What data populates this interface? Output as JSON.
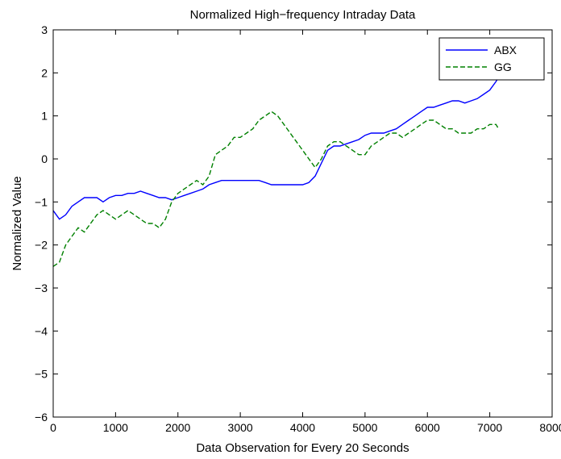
{
  "chart_data": {
    "type": "line",
    "title": "Normalized High−frequency Intraday Data",
    "xlabel": "Data Observation for Every 20 Seconds",
    "ylabel": "Normalized Value",
    "xlim": [
      0,
      8000
    ],
    "ylim": [
      -6,
      3
    ],
    "xticks": [
      "0",
      "1000",
      "2000",
      "3000",
      "4000",
      "5000",
      "6000",
      "7000",
      "8000"
    ],
    "yticks": [
      "3",
      "2",
      "1",
      "0",
      "−1",
      "−2",
      "−3",
      "−4",
      "−5",
      "−6"
    ],
    "grid": false,
    "legend_position": "top-right",
    "series": [
      {
        "name": "ABX",
        "color": "#0000ff",
        "style": "solid",
        "x": [
          0,
          100,
          200,
          300,
          400,
          500,
          600,
          700,
          800,
          900,
          1000,
          1100,
          1200,
          1300,
          1400,
          1500,
          1600,
          1700,
          1800,
          1900,
          2000,
          2100,
          2200,
          2300,
          2400,
          2500,
          2600,
          2700,
          2800,
          2900,
          3000,
          3100,
          3200,
          3300,
          3400,
          3500,
          3600,
          3700,
          3800,
          3900,
          4000,
          4100,
          4200,
          4300,
          4400,
          4500,
          4600,
          4700,
          4800,
          4900,
          5000,
          5100,
          5200,
          5300,
          5400,
          5500,
          5600,
          5700,
          5800,
          5900,
          6000,
          6100,
          6200,
          6300,
          6400,
          6500,
          6600,
          6700,
          6800,
          6900,
          7000,
          7100,
          7140
        ],
        "y": [
          -1.2,
          -1.4,
          -1.3,
          -1.1,
          -1.0,
          -0.9,
          -0.9,
          -0.9,
          -1.0,
          -0.9,
          -0.85,
          -0.85,
          -0.8,
          -0.8,
          -0.75,
          -0.8,
          -0.85,
          -0.9,
          -0.9,
          -0.95,
          -0.9,
          -0.85,
          -0.8,
          -0.75,
          -0.7,
          -0.6,
          -0.55,
          -0.5,
          -0.5,
          -0.5,
          -0.5,
          -0.5,
          -0.5,
          -0.5,
          -0.55,
          -0.6,
          -0.6,
          -0.6,
          -0.6,
          -0.6,
          -0.6,
          -0.55,
          -0.4,
          -0.1,
          0.2,
          0.3,
          0.3,
          0.35,
          0.4,
          0.45,
          0.55,
          0.6,
          0.6,
          0.6,
          0.65,
          0.7,
          0.8,
          0.9,
          1.0,
          1.1,
          1.2,
          1.2,
          1.25,
          1.3,
          1.35,
          1.35,
          1.3,
          1.35,
          1.4,
          1.5,
          1.6,
          1.8,
          1.9
        ]
      },
      {
        "name": "GG",
        "color": "#008000",
        "style": "dashed",
        "x": [
          0,
          100,
          200,
          300,
          400,
          500,
          600,
          700,
          800,
          900,
          1000,
          1100,
          1200,
          1300,
          1400,
          1500,
          1600,
          1700,
          1800,
          1900,
          2000,
          2100,
          2200,
          2300,
          2400,
          2500,
          2600,
          2700,
          2800,
          2900,
          3000,
          3100,
          3200,
          3300,
          3400,
          3500,
          3600,
          3700,
          3800,
          3900,
          4000,
          4100,
          4200,
          4300,
          4400,
          4500,
          4600,
          4700,
          4800,
          4900,
          5000,
          5100,
          5200,
          5300,
          5400,
          5500,
          5600,
          5700,
          5800,
          5900,
          6000,
          6100,
          6200,
          6300,
          6400,
          6500,
          6600,
          6700,
          6800,
          6900,
          7000,
          7100,
          7140
        ],
        "y": [
          -2.5,
          -2.4,
          -2.0,
          -1.8,
          -1.6,
          -1.7,
          -1.5,
          -1.3,
          -1.2,
          -1.3,
          -1.4,
          -1.3,
          -1.2,
          -1.3,
          -1.4,
          -1.5,
          -1.5,
          -1.6,
          -1.4,
          -1.0,
          -0.8,
          -0.7,
          -0.6,
          -0.5,
          -0.6,
          -0.4,
          0.1,
          0.2,
          0.3,
          0.5,
          0.5,
          0.6,
          0.7,
          0.9,
          1.0,
          1.1,
          1.0,
          0.8,
          0.6,
          0.4,
          0.2,
          0.0,
          -0.2,
          0.0,
          0.3,
          0.4,
          0.4,
          0.3,
          0.2,
          0.1,
          0.1,
          0.3,
          0.4,
          0.5,
          0.6,
          0.6,
          0.5,
          0.6,
          0.7,
          0.8,
          0.9,
          0.9,
          0.8,
          0.7,
          0.7,
          0.6,
          0.6,
          0.6,
          0.7,
          0.7,
          0.8,
          0.8,
          0.7
        ]
      }
    ]
  }
}
